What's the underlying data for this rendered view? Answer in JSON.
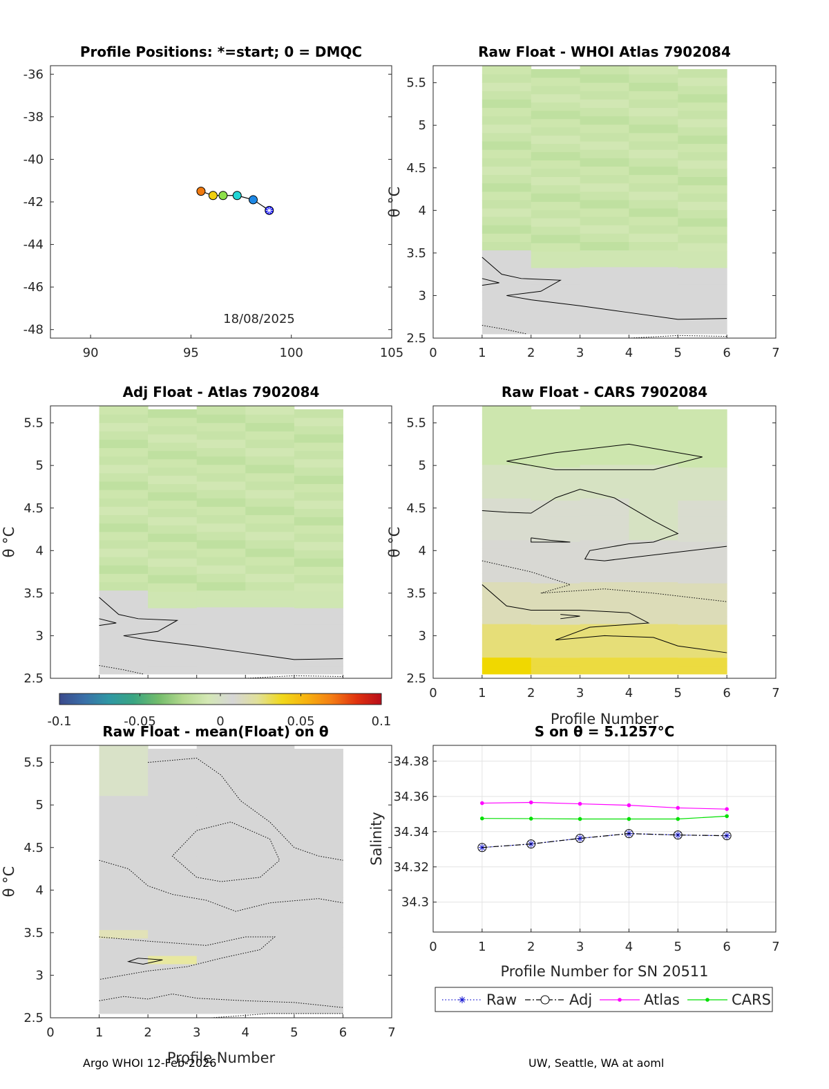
{
  "colors": {
    "raw_line": "#1010d0",
    "adj_line": "#000000",
    "atlas_line": "#ff00ff",
    "cars_line": "#00e000",
    "colorbar_stops": [
      "#3b4a8c",
      "#3a6fa8",
      "#2f97a4",
      "#3aa582",
      "#73bc6b",
      "#b3d88e",
      "#d4e8b5",
      "#d6d6d6",
      "#e0e09a",
      "#f1d81a",
      "#f7b10f",
      "#f47d14",
      "#e0320f",
      "#b80d1a"
    ]
  },
  "colorbar": {
    "ticks": [
      "-0.1",
      "-0.05",
      "0",
      "0.05",
      "0.1"
    ],
    "min": -0.1,
    "max": 0.1
  },
  "footer": {
    "left": "Argo WHOI 12-Feb-2026",
    "right": "UW, Seattle, WA at aoml"
  },
  "chart_data": [
    {
      "id": "positions",
      "type": "scatter",
      "title": "Profile Positions: *=start; 0 = DMQC",
      "annotation": "18/08/2025",
      "xlim": [
        88,
        105
      ],
      "ylim": [
        -48.4,
        -35.6
      ],
      "xticks": [
        "90",
        "95",
        "100",
        "105"
      ],
      "yticks": [
        "-36",
        "-38",
        "-40",
        "-42",
        "-44",
        "-46",
        "-48"
      ],
      "points": [
        {
          "lon": 98.9,
          "lat": -42.4,
          "color": "#1a1aff",
          "marker": "star"
        },
        {
          "lon": 98.1,
          "lat": -41.9,
          "color": "#1e88e5",
          "marker": "circle"
        },
        {
          "lon": 97.3,
          "lat": -41.7,
          "color": "#22d6d6",
          "marker": "circle"
        },
        {
          "lon": 96.6,
          "lat": -41.7,
          "color": "#8ee04a",
          "marker": "circle"
        },
        {
          "lon": 96.1,
          "lat": -41.7,
          "color": "#f0d010",
          "marker": "circle"
        },
        {
          "lon": 95.5,
          "lat": -41.5,
          "color": "#f07a10",
          "marker": "circle"
        }
      ]
    },
    {
      "id": "raw_whoi",
      "type": "heatmap",
      "title": "Raw Float - WHOI Atlas  7902084",
      "ylabel": "θ °C",
      "xlim": [
        0,
        7
      ],
      "ylim": [
        2.5,
        5.7
      ],
      "xticks": [
        "0",
        "1",
        "2",
        "3",
        "4",
        "5",
        "6",
        "7"
      ],
      "yticks": [
        "2.5",
        "3",
        "3.5",
        "4",
        "4.5",
        "5",
        "5.5"
      ]
    },
    {
      "id": "adj_atlas",
      "type": "heatmap",
      "title": "Adj Float - Atlas  7902084",
      "ylabel": "θ °C",
      "xlim": [
        0,
        7
      ],
      "ylim": [
        2.5,
        5.7
      ],
      "yticks": [
        "2.5",
        "3",
        "3.5",
        "4",
        "4.5",
        "5",
        "5.5"
      ]
    },
    {
      "id": "raw_cars",
      "type": "heatmap",
      "title": "Raw Float - CARS  7902084",
      "ylabel": "θ °C",
      "xlabel": "Profile Number",
      "xlim": [
        0,
        7
      ],
      "ylim": [
        2.5,
        5.7
      ],
      "xticks": [
        "0",
        "1",
        "2",
        "3",
        "4",
        "5",
        "6",
        "7"
      ],
      "yticks": [
        "2.5",
        "3",
        "3.5",
        "4",
        "4.5",
        "5",
        "5.5"
      ]
    },
    {
      "id": "raw_mean",
      "type": "heatmap",
      "title": "Raw Float - mean(Float) on θ",
      "ylabel": "θ °C",
      "xlabel": "Profile Number",
      "xlim": [
        0,
        7
      ],
      "ylim": [
        2.5,
        5.7
      ],
      "xticks": [
        "0",
        "1",
        "2",
        "3",
        "4",
        "5",
        "6",
        "7"
      ],
      "yticks": [
        "2.5",
        "3",
        "3.5",
        "4",
        "4.5",
        "5",
        "5.5"
      ]
    },
    {
      "id": "salinity",
      "type": "line",
      "title": "S on θ = 5.1257°C",
      "xlabel": "Profile Number for SN 20511",
      "ylabel": "Salinity",
      "xlim": [
        0,
        7
      ],
      "ylim": [
        34.283,
        34.389
      ],
      "xticks": [
        "0",
        "1",
        "2",
        "3",
        "4",
        "5",
        "6",
        "7"
      ],
      "yticks": [
        "34.3",
        "34.32",
        "34.34",
        "34.36",
        "34.38"
      ],
      "x": [
        1,
        2,
        3,
        4,
        5,
        6
      ],
      "series": [
        {
          "name": "Raw",
          "values": [
            34.331,
            34.333,
            34.3362,
            34.3389,
            34.3381,
            34.3377
          ]
        },
        {
          "name": "Adj",
          "values": [
            34.331,
            34.333,
            34.3362,
            34.3389,
            34.3381,
            34.3377
          ]
        },
        {
          "name": "Atlas",
          "values": [
            34.3562,
            34.3566,
            34.3558,
            34.355,
            34.3535,
            34.3528
          ]
        },
        {
          "name": "CARS",
          "values": [
            34.3475,
            34.3474,
            34.3472,
            34.3472,
            34.3472,
            34.3488
          ]
        }
      ]
    }
  ]
}
